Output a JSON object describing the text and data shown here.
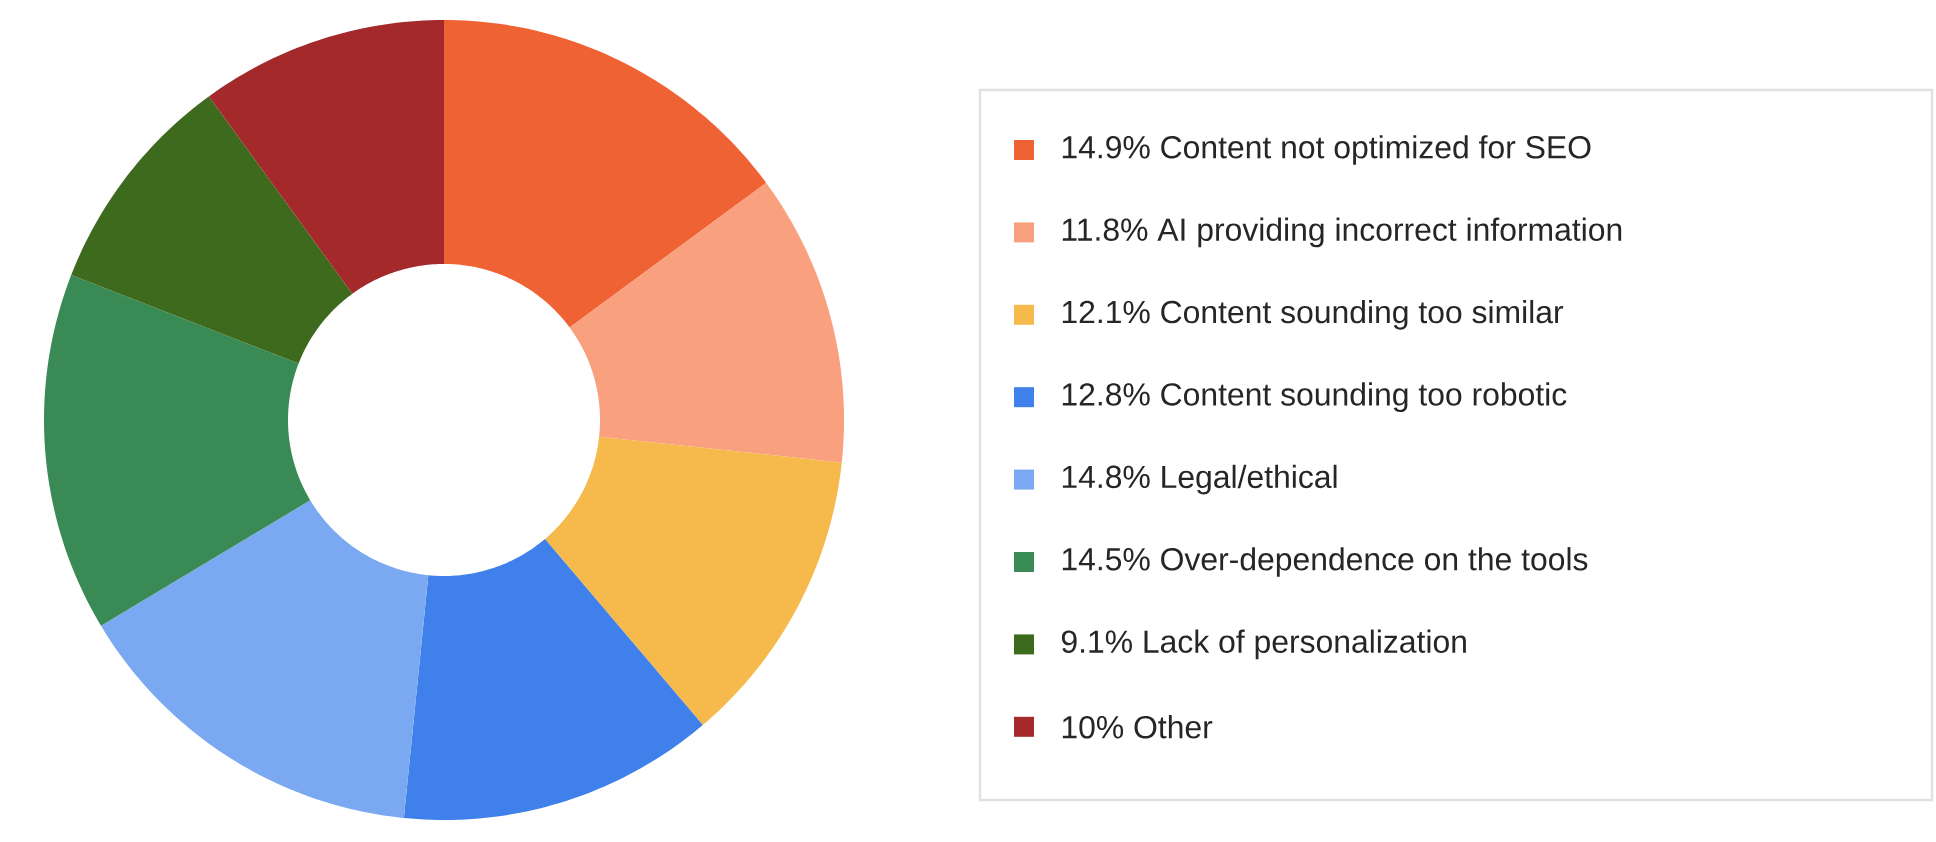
{
  "chart_data": {
    "type": "donut",
    "categories": [
      "14.9% Content not optimized for SEO",
      "11.8% AI providing incorrect information",
      "12.1% Content sounding too similar",
      "12.8% Content sounding too robotic",
      "14.8% Legal/ethical",
      "14.5% Over-dependence on the tools",
      "9.1% Lack of personalization",
      "10% Other"
    ],
    "values": [
      14.9,
      11.8,
      12.1,
      12.8,
      14.8,
      14.5,
      9.1,
      10
    ],
    "colors": [
      "#ef6234",
      "#f9a07f",
      "#f6b94b",
      "#3f80ea",
      "#7aa9f1",
      "#3a8a55",
      "#3e6a1e",
      "#a3292b"
    ],
    "legend": "right"
  }
}
